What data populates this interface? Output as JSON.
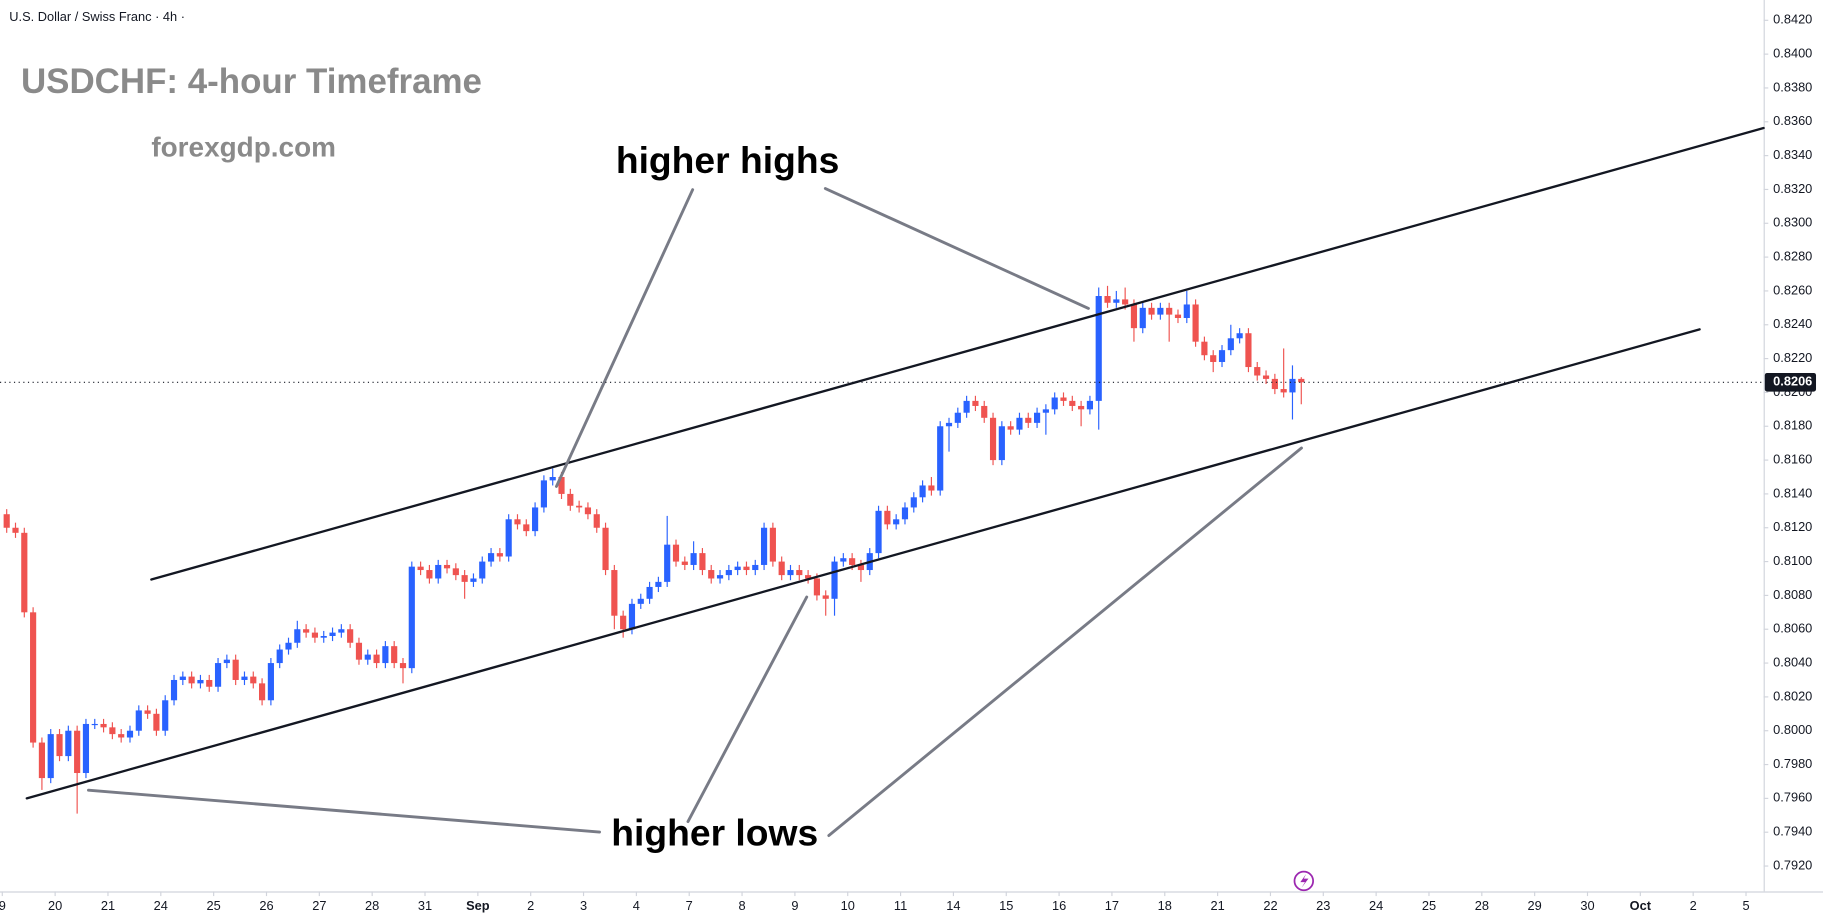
{
  "chart_data": {
    "type": "candlestick",
    "symbol": "U.S. Dollar / Swiss Franc · 4h ·",
    "title": "USDCHF: 4-hour Timeframe",
    "subtitle": "forexgdp.com",
    "annotations": [
      "higher highs",
      "higher lows"
    ],
    "up_color": "#2962ff",
    "down_color": "#ef5350",
    "last_price": {
      "value": 0.8206,
      "label": "0.8206"
    },
    "xlim": [
      -0.26,
      200
    ],
    "ylim": [
      0.7905,
      0.8432
    ],
    "xticks": [
      {
        "value": 0,
        "label": "9"
      },
      {
        "value": 6,
        "label": "20"
      },
      {
        "value": 12,
        "label": "21"
      },
      {
        "value": 18,
        "label": "24"
      },
      {
        "value": 24,
        "label": "25"
      },
      {
        "value": 30,
        "label": "26"
      },
      {
        "value": 36,
        "label": "27"
      },
      {
        "value": 42,
        "label": "28"
      },
      {
        "value": 48,
        "label": "31"
      },
      {
        "value": 54,
        "label": "Sep"
      },
      {
        "value": 60,
        "label": "2"
      },
      {
        "value": 66,
        "label": "3"
      },
      {
        "value": 72,
        "label": "4"
      },
      {
        "value": 78,
        "label": "7"
      },
      {
        "value": 84,
        "label": "8"
      },
      {
        "value": 90,
        "label": "9"
      },
      {
        "value": 96,
        "label": "10"
      },
      {
        "value": 102,
        "label": "11"
      },
      {
        "value": 108,
        "label": "14"
      },
      {
        "value": 114,
        "label": "15"
      },
      {
        "value": 120,
        "label": "16"
      },
      {
        "value": 126,
        "label": "17"
      },
      {
        "value": 132,
        "label": "18"
      },
      {
        "value": 138,
        "label": "21"
      },
      {
        "value": 144,
        "label": "22"
      },
      {
        "value": 150,
        "label": "23"
      },
      {
        "value": 156,
        "label": "24"
      },
      {
        "value": 162,
        "label": "25"
      },
      {
        "value": 168,
        "label": "28"
      },
      {
        "value": 174,
        "label": "29"
      },
      {
        "value": 180,
        "label": "30"
      },
      {
        "value": 186,
        "label": "Oct"
      },
      {
        "value": 192,
        "label": "2"
      },
      {
        "value": 198,
        "label": "5"
      }
    ],
    "yticks": [
      {
        "value": 0.792,
        "label": "0.7920"
      },
      {
        "value": 0.794,
        "label": "0.7940"
      },
      {
        "value": 0.796,
        "label": "0.7960"
      },
      {
        "value": 0.798,
        "label": "0.7980"
      },
      {
        "value": 0.8,
        "label": "0.8000"
      },
      {
        "value": 0.802,
        "label": "0.8020"
      },
      {
        "value": 0.804,
        "label": "0.8040"
      },
      {
        "value": 0.806,
        "label": "0.8060"
      },
      {
        "value": 0.808,
        "label": "0.8080"
      },
      {
        "value": 0.81,
        "label": "0.8100"
      },
      {
        "value": 0.812,
        "label": "0.8120"
      },
      {
        "value": 0.814,
        "label": "0.8140"
      },
      {
        "value": 0.816,
        "label": "0.8160"
      },
      {
        "value": 0.818,
        "label": "0.8180"
      },
      {
        "value": 0.82,
        "label": "0.8200"
      },
      {
        "value": 0.822,
        "label": "0.8220"
      },
      {
        "value": 0.824,
        "label": "0.8240"
      },
      {
        "value": 0.826,
        "label": "0.8260"
      },
      {
        "value": 0.828,
        "label": "0.8280"
      },
      {
        "value": 0.83,
        "label": "0.8300"
      },
      {
        "value": 0.832,
        "label": "0.8320"
      },
      {
        "value": 0.834,
        "label": "0.8340"
      },
      {
        "value": 0.836,
        "label": "0.8360"
      },
      {
        "value": 0.838,
        "label": "0.8380"
      },
      {
        "value": 0.84,
        "label": "0.8400"
      },
      {
        "value": 0.842,
        "label": "0.8420"
      }
    ],
    "candles": [
      [
        0.8128,
        0.8131,
        0.8117,
        0.812
      ],
      [
        0.812,
        0.8123,
        0.8114,
        0.8117
      ],
      [
        0.8117,
        0.812,
        0.8067,
        0.807
      ],
      [
        0.807,
        0.8073,
        0.799,
        0.7993
      ],
      [
        0.7993,
        0.7996,
        0.7965,
        0.7972
      ],
      [
        0.7972,
        0.8001,
        0.7969,
        0.7998
      ],
      [
        0.7998,
        0.8001,
        0.7982,
        0.7985
      ],
      [
        0.7985,
        0.8003,
        0.7982,
        0.8
      ],
      [
        0.8,
        0.8003,
        0.7951,
        0.7975
      ],
      [
        0.7975,
        0.8007,
        0.7972,
        0.8004
      ],
      [
        0.8004,
        0.8007,
        0.8001,
        0.8004
      ],
      [
        0.8004,
        0.8007,
        0.7999,
        0.8002
      ],
      [
        0.8002,
        0.8005,
        0.7995,
        0.7998
      ],
      [
        0.7998,
        0.8001,
        0.7993,
        0.7996
      ],
      [
        0.7996,
        0.8003,
        0.7993,
        0.8
      ],
      [
        0.8,
        0.8015,
        0.7997,
        0.8012
      ],
      [
        0.8012,
        0.8015,
        0.8007,
        0.801
      ],
      [
        0.801,
        0.8013,
        0.7997,
        0.8
      ],
      [
        0.8,
        0.8021,
        0.7997,
        0.8018
      ],
      [
        0.8018,
        0.8033,
        0.8015,
        0.803
      ],
      [
        0.803,
        0.8035,
        0.8027,
        0.8032
      ],
      [
        0.8032,
        0.8035,
        0.8025,
        0.8028
      ],
      [
        0.8028,
        0.8033,
        0.8025,
        0.803
      ],
      [
        0.803,
        0.8033,
        0.8023,
        0.8026
      ],
      [
        0.8026,
        0.8043,
        0.8023,
        0.804
      ],
      [
        0.804,
        0.8045,
        0.8037,
        0.8042
      ],
      [
        0.8042,
        0.8045,
        0.8027,
        0.803
      ],
      [
        0.803,
        0.8035,
        0.8027,
        0.8032
      ],
      [
        0.8032,
        0.8035,
        0.8025,
        0.8028
      ],
      [
        0.8028,
        0.8031,
        0.8015,
        0.8018
      ],
      [
        0.8018,
        0.8043,
        0.8015,
        0.804
      ],
      [
        0.804,
        0.8051,
        0.8037,
        0.8048
      ],
      [
        0.8048,
        0.8055,
        0.8045,
        0.8052
      ],
      [
        0.8052,
        0.8065,
        0.8049,
        0.806
      ],
      [
        0.806,
        0.8063,
        0.8055,
        0.8058
      ],
      [
        0.8058,
        0.8061,
        0.8052,
        0.8055
      ],
      [
        0.8055,
        0.8059,
        0.8052,
        0.8056
      ],
      [
        0.8056,
        0.8061,
        0.8053,
        0.8058
      ],
      [
        0.8058,
        0.8063,
        0.8055,
        0.806
      ],
      [
        0.806,
        0.8063,
        0.8049,
        0.8052
      ],
      [
        0.8052,
        0.8055,
        0.8039,
        0.8042
      ],
      [
        0.8042,
        0.8048,
        0.8039,
        0.8045
      ],
      [
        0.8045,
        0.8048,
        0.8037,
        0.804
      ],
      [
        0.804,
        0.8053,
        0.8037,
        0.805
      ],
      [
        0.805,
        0.8053,
        0.8037,
        0.804
      ],
      [
        0.804,
        0.8043,
        0.8028,
        0.8037
      ],
      [
        0.8037,
        0.81,
        0.8034,
        0.8097
      ],
      [
        0.8097,
        0.81,
        0.8092,
        0.8095
      ],
      [
        0.8095,
        0.8098,
        0.8087,
        0.809
      ],
      [
        0.809,
        0.8101,
        0.8087,
        0.8098
      ],
      [
        0.8098,
        0.8101,
        0.8093,
        0.8096
      ],
      [
        0.8096,
        0.8099,
        0.8089,
        0.8092
      ],
      [
        0.8092,
        0.8095,
        0.8078,
        0.8088
      ],
      [
        0.8088,
        0.8093,
        0.8085,
        0.809
      ],
      [
        0.809,
        0.8103,
        0.8087,
        0.81
      ],
      [
        0.81,
        0.8108,
        0.8097,
        0.8105
      ],
      [
        0.8105,
        0.8108,
        0.81,
        0.8103
      ],
      [
        0.8103,
        0.8128,
        0.81,
        0.8125
      ],
      [
        0.8125,
        0.8128,
        0.8119,
        0.8122
      ],
      [
        0.8122,
        0.8125,
        0.8115,
        0.8118
      ],
      [
        0.8118,
        0.8135,
        0.8115,
        0.8132
      ],
      [
        0.8132,
        0.8151,
        0.8129,
        0.8148
      ],
      [
        0.8148,
        0.8155,
        0.8145,
        0.815
      ],
      [
        0.815,
        0.8153,
        0.8137,
        0.814
      ],
      [
        0.814,
        0.8143,
        0.813,
        0.8133
      ],
      [
        0.8133,
        0.8136,
        0.8129,
        0.8132
      ],
      [
        0.8132,
        0.8135,
        0.8125,
        0.8128
      ],
      [
        0.8128,
        0.8131,
        0.8117,
        0.812
      ],
      [
        0.812,
        0.8123,
        0.8092,
        0.8095
      ],
      [
        0.8095,
        0.8098,
        0.806,
        0.8068
      ],
      [
        0.8068,
        0.8071,
        0.8055,
        0.806
      ],
      [
        0.806,
        0.8078,
        0.8057,
        0.8075
      ],
      [
        0.8075,
        0.8081,
        0.8072,
        0.8078
      ],
      [
        0.8078,
        0.8088,
        0.8075,
        0.8085
      ],
      [
        0.8085,
        0.8091,
        0.8082,
        0.8088
      ],
      [
        0.8088,
        0.8127,
        0.8085,
        0.811
      ],
      [
        0.811,
        0.8113,
        0.8097,
        0.81
      ],
      [
        0.81,
        0.8103,
        0.8095,
        0.8098
      ],
      [
        0.8098,
        0.8112,
        0.8095,
        0.8105
      ],
      [
        0.8105,
        0.8108,
        0.8092,
        0.8095
      ],
      [
        0.8095,
        0.8098,
        0.8087,
        0.809
      ],
      [
        0.809,
        0.8095,
        0.8087,
        0.8092
      ],
      [
        0.8092,
        0.8098,
        0.8089,
        0.8095
      ],
      [
        0.8095,
        0.81,
        0.8092,
        0.8097
      ],
      [
        0.8097,
        0.81,
        0.8092,
        0.8095
      ],
      [
        0.8095,
        0.8101,
        0.8092,
        0.8098
      ],
      [
        0.8098,
        0.8123,
        0.8095,
        0.812
      ],
      [
        0.812,
        0.8123,
        0.8097,
        0.81
      ],
      [
        0.81,
        0.8103,
        0.8089,
        0.8092
      ],
      [
        0.8092,
        0.8098,
        0.8089,
        0.8095
      ],
      [
        0.8095,
        0.8098,
        0.8089,
        0.8092
      ],
      [
        0.8092,
        0.8095,
        0.8087,
        0.809
      ],
      [
        0.809,
        0.8093,
        0.8077,
        0.808
      ],
      [
        0.808,
        0.8083,
        0.8068,
        0.8078
      ],
      [
        0.8078,
        0.8103,
        0.8068,
        0.81
      ],
      [
        0.81,
        0.8105,
        0.8097,
        0.8102
      ],
      [
        0.8102,
        0.8105,
        0.8095,
        0.8098
      ],
      [
        0.8098,
        0.8101,
        0.8088,
        0.8095
      ],
      [
        0.8095,
        0.8108,
        0.8092,
        0.8105
      ],
      [
        0.8105,
        0.8133,
        0.8102,
        0.813
      ],
      [
        0.813,
        0.8133,
        0.8119,
        0.8122
      ],
      [
        0.8122,
        0.8128,
        0.8119,
        0.8125
      ],
      [
        0.8125,
        0.8135,
        0.8122,
        0.8132
      ],
      [
        0.8132,
        0.8141,
        0.8129,
        0.8138
      ],
      [
        0.8138,
        0.8148,
        0.8135,
        0.8145
      ],
      [
        0.8145,
        0.815,
        0.8139,
        0.8142
      ],
      [
        0.8142,
        0.8183,
        0.8139,
        0.818
      ],
      [
        0.818,
        0.8185,
        0.8165,
        0.8182
      ],
      [
        0.8182,
        0.8191,
        0.8179,
        0.8188
      ],
      [
        0.8188,
        0.8198,
        0.8185,
        0.8195
      ],
      [
        0.8195,
        0.8198,
        0.8189,
        0.8192
      ],
      [
        0.8192,
        0.8195,
        0.8182,
        0.8185
      ],
      [
        0.8185,
        0.8188,
        0.8157,
        0.816
      ],
      [
        0.816,
        0.8183,
        0.8157,
        0.818
      ],
      [
        0.818,
        0.8183,
        0.8175,
        0.8178
      ],
      [
        0.8178,
        0.8188,
        0.8175,
        0.8185
      ],
      [
        0.8185,
        0.8188,
        0.8179,
        0.8182
      ],
      [
        0.8182,
        0.8191,
        0.8179,
        0.8188
      ],
      [
        0.8188,
        0.8193,
        0.8175,
        0.819
      ],
      [
        0.819,
        0.82,
        0.8187,
        0.8197
      ],
      [
        0.8197,
        0.82,
        0.8192,
        0.8195
      ],
      [
        0.8195,
        0.8198,
        0.8189,
        0.8192
      ],
      [
        0.8192,
        0.8195,
        0.818,
        0.819
      ],
      [
        0.819,
        0.8198,
        0.8187,
        0.8195
      ],
      [
        0.8195,
        0.8262,
        0.8178,
        0.8257
      ],
      [
        0.8257,
        0.8263,
        0.825,
        0.8253
      ],
      [
        0.8253,
        0.826,
        0.825,
        0.8255
      ],
      [
        0.8255,
        0.8262,
        0.8249,
        0.8252
      ],
      [
        0.8252,
        0.8255,
        0.823,
        0.8238
      ],
      [
        0.8238,
        0.8253,
        0.8235,
        0.825
      ],
      [
        0.825,
        0.8253,
        0.8243,
        0.8246
      ],
      [
        0.8246,
        0.8253,
        0.8243,
        0.825
      ],
      [
        0.825,
        0.8253,
        0.823,
        0.8246
      ],
      [
        0.8246,
        0.8249,
        0.8241,
        0.8244
      ],
      [
        0.8244,
        0.826,
        0.8241,
        0.8252
      ],
      [
        0.8252,
        0.8255,
        0.8227,
        0.823
      ],
      [
        0.823,
        0.8233,
        0.8219,
        0.8222
      ],
      [
        0.8222,
        0.8225,
        0.8212,
        0.8218
      ],
      [
        0.8218,
        0.8228,
        0.8215,
        0.8225
      ],
      [
        0.8225,
        0.824,
        0.8222,
        0.8232
      ],
      [
        0.8232,
        0.8238,
        0.8229,
        0.8235
      ],
      [
        0.8235,
        0.8238,
        0.8212,
        0.8215
      ],
      [
        0.8215,
        0.8218,
        0.8207,
        0.821
      ],
      [
        0.821,
        0.8213,
        0.8205,
        0.8208
      ],
      [
        0.8208,
        0.8211,
        0.8199,
        0.8202
      ],
      [
        0.8202,
        0.8226,
        0.8197,
        0.82
      ],
      [
        0.82,
        0.8216,
        0.8184,
        0.8208
      ],
      [
        0.8208,
        0.8209,
        0.8193,
        0.8206
      ]
    ]
  }
}
